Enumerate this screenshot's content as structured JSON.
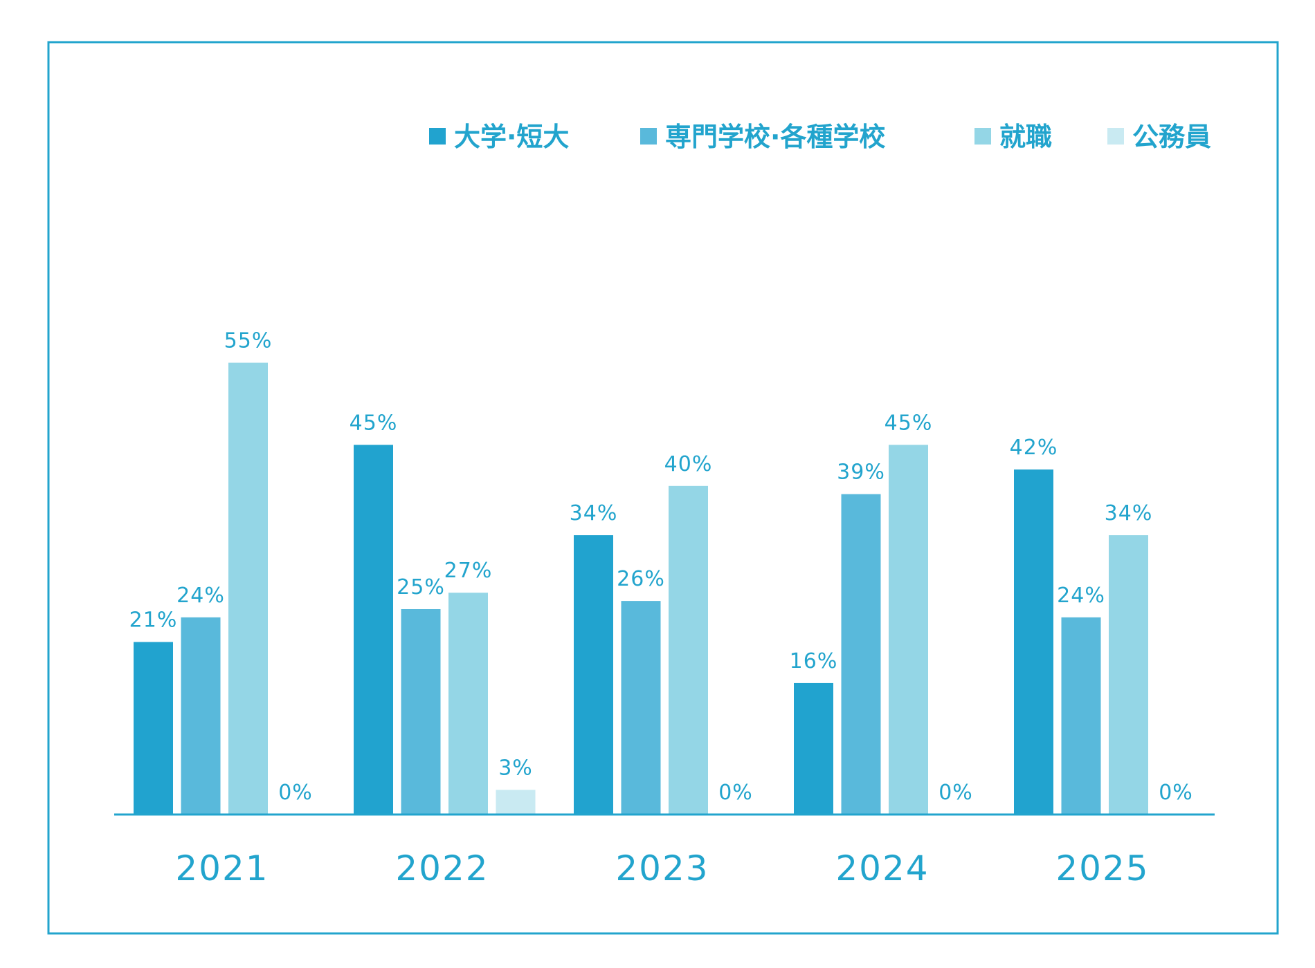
{
  "chart_data": {
    "type": "bar",
    "title": "",
    "xlabel": "",
    "ylabel": "",
    "categories": [
      "2021",
      "2022",
      "2023",
      "2024",
      "2025"
    ],
    "series": [
      {
        "name": "大学·短大",
        "color": "#21a3cf",
        "values": [
          21,
          45,
          34,
          16,
          42
        ]
      },
      {
        "name": "専門学校·各種学校",
        "color": "#59b9db",
        "values": [
          24,
          25,
          26,
          39,
          24
        ]
      },
      {
        "name": "就職",
        "color": "#94d6e6",
        "values": [
          55,
          27,
          40,
          45,
          34
        ]
      },
      {
        "name": "公務員",
        "color": "#c9eaf2",
        "values": [
          0,
          3,
          0,
          0,
          null
        ]
      }
    ],
    "value_labels": [
      [
        "21%",
        "45%",
        "34%",
        "16%",
        "42%"
      ],
      [
        "24%",
        "25%",
        "26%",
        "39%",
        "24%"
      ],
      [
        "55%",
        "27%",
        "40%",
        "45%",
        "34%"
      ],
      [
        "0%",
        "3%",
        "0%",
        "0%",
        "0%"
      ]
    ],
    "ylim": [
      0,
      60
    ],
    "grid": false,
    "legend_position": "top-right",
    "accent_color": "#22a4cd"
  }
}
